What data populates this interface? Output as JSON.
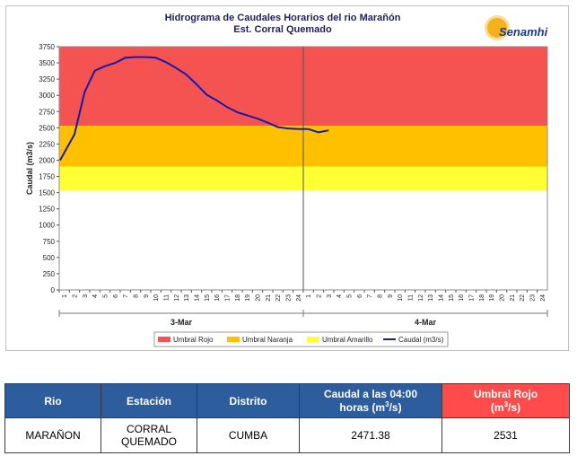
{
  "chart_data": {
    "type": "line",
    "title": "Hidrograma de Caudales Horarios del rio Marañón",
    "subtitle": "Est. Corral Quemado",
    "ylabel": "Caudal  (m3/s)",
    "ylim": [
      0,
      3750
    ],
    "yticks": [
      0,
      250,
      500,
      750,
      1000,
      1250,
      1500,
      1750,
      2000,
      2250,
      2500,
      2750,
      3000,
      3250,
      3500,
      3750
    ],
    "x_tick_labels": [
      "1",
      "2",
      "3",
      "4",
      "5",
      "6",
      "7",
      "8",
      "9",
      "10",
      "11",
      "12",
      "13",
      "14",
      "15",
      "16",
      "17",
      "18",
      "19",
      "20",
      "21",
      "22",
      "23",
      "24",
      "1",
      "2",
      "3",
      "4",
      "5",
      "6",
      "7",
      "8",
      "9",
      "10",
      "11",
      "12",
      "13",
      "14",
      "15",
      "16",
      "17",
      "18",
      "19",
      "20",
      "21",
      "22",
      "23",
      "24"
    ],
    "day_labels": [
      "3-Mar",
      "4-Mar"
    ],
    "thresholds": [
      {
        "name": "Umbral Rojo",
        "from": 2531,
        "to": 3750,
        "color": "#f55252"
      },
      {
        "name": "Umbral Naranja",
        "from": 1900,
        "to": 2531,
        "color": "#ffc000"
      },
      {
        "name": "Umbral Amarillo",
        "from": 1530,
        "to": 1900,
        "color": "#ffff33"
      }
    ],
    "series": [
      {
        "name": "Caudal (m3/s)",
        "color": "#1a1aa6",
        "values": [
          2000,
          2400,
          3050,
          3380,
          3450,
          3500,
          3580,
          3590,
          3590,
          3580,
          3510,
          3420,
          3320,
          3170,
          3010,
          2920,
          2820,
          2740,
          2690,
          2640,
          2580,
          2510,
          2490,
          2480,
          2480,
          2430,
          2460
        ]
      }
    ],
    "legend": [
      "Umbral Rojo",
      "Umbral Naranja",
      "Umbral Amarillo",
      "Caudal (m3/s)"
    ],
    "legend_position": "bottom",
    "grid": false
  },
  "logo_text": "Senamhi",
  "table": {
    "headers": {
      "rio": "Rio",
      "estacion": "Estación",
      "distrito": "Distrito",
      "caudal_line1": "Caudal a las 04:00",
      "caudal_line2": "horas (m",
      "caudal_sup": "3",
      "caudal_end": "/s)",
      "umbral_line1": "Umbral Rojo",
      "umbral_line2": "(m",
      "umbral_sup": "3",
      "umbral_end": "/s)"
    },
    "row": {
      "rio": "MARAÑON",
      "estacion_line1": "CORRAL",
      "estacion_line2": "QUEMADO",
      "distrito": "CUMBA",
      "caudal": "2471.38",
      "umbral": "2531"
    }
  }
}
